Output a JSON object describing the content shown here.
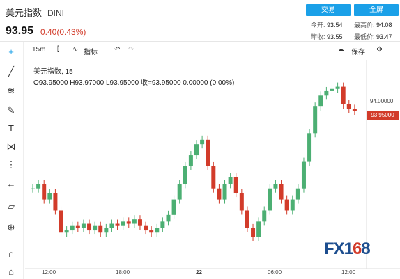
{
  "header": {
    "name": "美元指数",
    "code": "DINI",
    "price": "93.95",
    "change": "0.40(0.43%)",
    "trade_btn": "交易",
    "fullscreen_btn": "全屏",
    "open_lbl": "今开:",
    "open": "93.54",
    "high_lbl": "最高价:",
    "high": "94.08",
    "prev_lbl": "昨收:",
    "prev": "93.55",
    "low_lbl": "最低价:",
    "low": "93.47"
  },
  "toolbar": {
    "interval": "15m",
    "indicators": "指标",
    "save": "保存"
  },
  "legend": {
    "title": "美元指数, 15",
    "ohlc": "O93.95000  H93.97000  L93.95000  收=93.95000  0.00000 (0.00%)"
  },
  "price_axis": {
    "tick": "94.00000",
    "current": "93.95000"
  },
  "x_axis": [
    "12:00",
    "18:00",
    "22",
    "06:00",
    "12:00"
  ],
  "logo": {
    "main": "FX1",
    "accent": "6",
    "end": "8"
  },
  "chart_data": {
    "type": "candlestick",
    "series": [
      {
        "values": [
          93.6,
          93.62,
          93.55,
          93.58,
          93.5,
          93.4,
          93.41,
          93.43,
          93.42,
          93.44,
          93.41,
          93.43,
          93.4,
          93.42,
          93.44,
          93.43,
          93.45,
          93.44,
          93.46,
          93.43,
          93.41,
          93.4,
          93.42,
          93.45,
          93.48,
          93.55,
          93.62,
          93.7,
          93.75,
          93.8,
          93.82,
          93.7,
          93.6,
          93.55,
          93.62,
          93.65,
          93.58,
          93.5,
          93.42,
          93.38,
          93.45,
          93.5,
          93.6,
          93.62,
          93.55,
          93.5,
          93.55,
          93.6,
          93.72,
          93.85,
          93.97,
          94.02,
          94.04,
          94.05,
          94.06,
          93.98,
          93.96,
          93.95
        ]
      }
    ]
  },
  "colors": {
    "up": "#4caf73",
    "down": "#d23b2a",
    "accent": "#1aa0e8"
  }
}
